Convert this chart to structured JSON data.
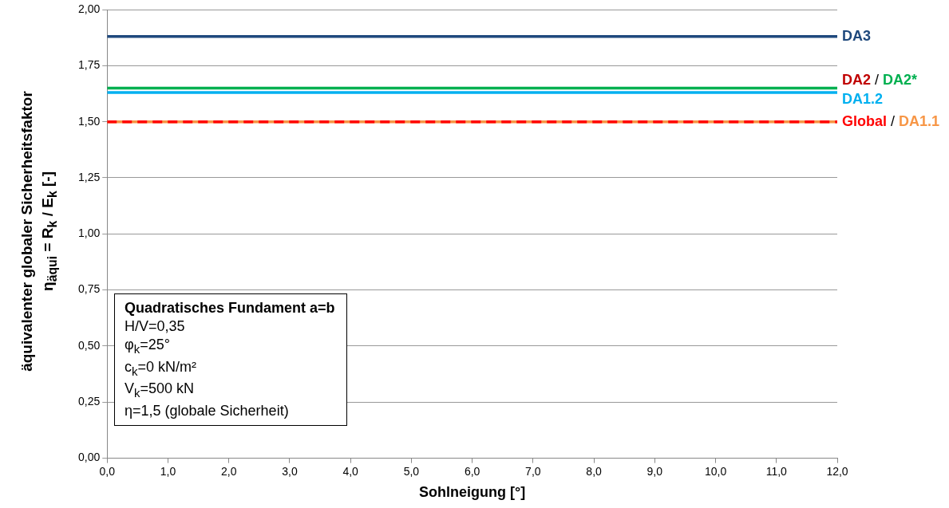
{
  "chart_data": {
    "type": "line",
    "xlabel": "Sohlneigung [°]",
    "ylabel": "äquivalenter globaler Sicherheitsfaktor\nη$_{äqui}$ = R$_{k}$ / E$_{k}$  [-]",
    "x": [
      0,
      12
    ],
    "series": [
      {
        "name": "DA3",
        "color": "#1f497d",
        "values": [
          1.88,
          1.88
        ]
      },
      {
        "name": "DA2",
        "color": "#c00000",
        "values": [
          null,
          null
        ]
      },
      {
        "name": "DA2*",
        "color": "#00b050",
        "values": [
          1.65,
          1.65
        ]
      },
      {
        "name": "DA1.2",
        "color": "#00b0f0",
        "values": [
          1.63,
          1.63
        ]
      },
      {
        "name": "Global",
        "color": "#ff0000",
        "line_style": "dashed",
        "values": [
          1.5,
          1.5
        ]
      },
      {
        "name": "DA1.1",
        "color": "#f79646",
        "values": [
          1.5,
          1.5
        ]
      }
    ],
    "xlim": [
      0,
      12
    ],
    "xticks": [
      {
        "value": 0,
        "label": "0,0"
      },
      {
        "value": 1,
        "label": "1,0"
      },
      {
        "value": 2,
        "label": "2,0"
      },
      {
        "value": 3,
        "label": "3,0"
      },
      {
        "value": 4,
        "label": "4,0"
      },
      {
        "value": 5,
        "label": "5,0"
      },
      {
        "value": 6,
        "label": "6,0"
      },
      {
        "value": 7,
        "label": "7,0"
      },
      {
        "value": 8,
        "label": "8,0"
      },
      {
        "value": 9,
        "label": "9,0"
      },
      {
        "value": 10,
        "label": "10,0"
      },
      {
        "value": 11,
        "label": "11,0"
      },
      {
        "value": 12,
        "label": "12,0"
      }
    ],
    "ylim": [
      0,
      2
    ],
    "yticks": [
      {
        "value": 0,
        "label": "0,00"
      },
      {
        "value": 0.25,
        "label": "0,25"
      },
      {
        "value": 0.5,
        "label": "0,50"
      },
      {
        "value": 0.75,
        "label": "0,75"
      },
      {
        "value": 1,
        "label": "1,00"
      },
      {
        "value": 1.25,
        "label": "1,25"
      },
      {
        "value": 1.5,
        "label": "1,50"
      },
      {
        "value": 1.75,
        "label": "1,75"
      },
      {
        "value": 2,
        "label": "2,00"
      }
    ],
    "grid": "y",
    "marker": "none",
    "legend": false,
    "annotations": [
      "/",
      "/",
      "Quadratisches Fundament a=b",
      "H/V=0,35",
      "φ$_{k}$=25°",
      "c$_{k}$=0 kN/m²",
      "V$_{k}$=500 kN",
      "η=1,5 (globale Sicherheit)"
    ]
  }
}
